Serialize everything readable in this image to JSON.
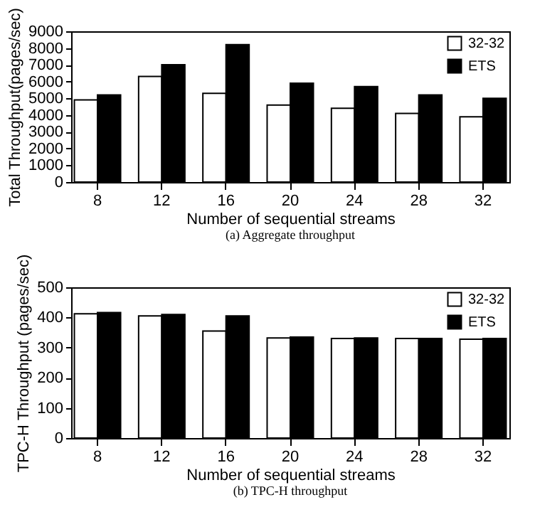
{
  "chart_data": [
    {
      "type": "bar",
      "xlabel": "Number of sequential streams",
      "ylabel": "Total Throughput(pages/sec)",
      "categories": [
        "8",
        "12",
        "16",
        "20",
        "24",
        "28",
        "32"
      ],
      "series": [
        {
          "name": "32-32",
          "color": "#ffffff",
          "values": [
            4900,
            6300,
            5300,
            4600,
            4400,
            4100,
            3900
          ]
        },
        {
          "name": "ETS",
          "color": "#000000",
          "values": [
            5200,
            7000,
            8200,
            5900,
            5700,
            5200,
            5000
          ]
        }
      ],
      "ylim": [
        0,
        9000
      ],
      "yticks": [
        0,
        1000,
        2000,
        3000,
        4000,
        5000,
        6000,
        7000,
        8000,
        9000
      ],
      "legend": "top right",
      "annotations": [
        "(a) Aggregate throughput"
      ]
    },
    {
      "type": "bar",
      "xlabel": "Number of sequential streams",
      "ylabel": "TPC-H Throughput (pages/sec)",
      "categories": [
        "8",
        "12",
        "16",
        "20",
        "24",
        "28",
        "32"
      ],
      "series": [
        {
          "name": "32-32",
          "color": "#ffffff",
          "values": [
            412,
            405,
            355,
            332,
            330,
            330,
            328
          ]
        },
        {
          "name": "ETS",
          "color": "#000000",
          "values": [
            416,
            410,
            405,
            335,
            332,
            330,
            330
          ]
        }
      ],
      "ylim": [
        0,
        500
      ],
      "yticks": [
        0,
        100,
        200,
        300,
        400,
        500
      ],
      "legend": "top right",
      "annotations": [
        "(b) TPC-H throughput"
      ]
    }
  ]
}
